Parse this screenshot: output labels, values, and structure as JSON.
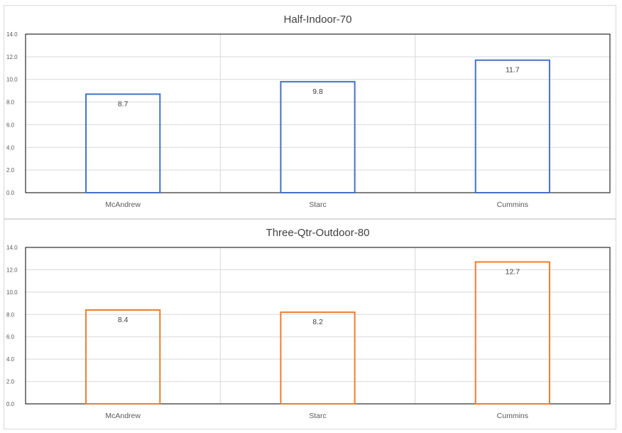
{
  "chart_data": [
    {
      "type": "bar",
      "title": "Half-Indoor-70",
      "categories": [
        "McAndrew",
        "Starc",
        "Cummins"
      ],
      "values": [
        8.7,
        9.8,
        11.7
      ],
      "value_labels": [
        "8.7",
        "9.8",
        "11.7"
      ],
      "ylim": [
        0,
        14
      ],
      "yticks": [
        "0.0",
        "2.0",
        "4.0",
        "6.0",
        "8.0",
        "10.0",
        "12.0",
        "14.0"
      ],
      "color": "#4472c4",
      "bar_style": "outline",
      "grid": true,
      "legend": "none"
    },
    {
      "type": "bar",
      "title": "Three-Qtr-Outdoor-80",
      "categories": [
        "McAndrew",
        "Starc",
        "Cummins"
      ],
      "values": [
        8.4,
        8.2,
        12.7
      ],
      "value_labels": [
        "8.4",
        "8.2",
        "12.7"
      ],
      "ylim": [
        0,
        14
      ],
      "yticks": [
        "0.0",
        "2.0",
        "4.0",
        "6.0",
        "8.0",
        "10.0",
        "12.0",
        "14.0"
      ],
      "color": "#ed7d31",
      "bar_style": "outline",
      "grid": true,
      "legend": "none"
    }
  ]
}
